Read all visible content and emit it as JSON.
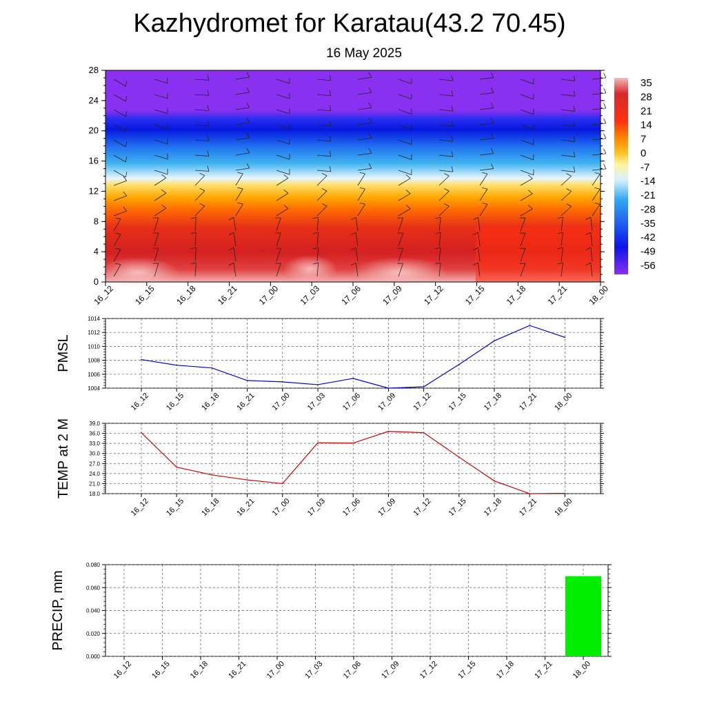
{
  "header": {
    "title": "Kazhydromet for Karatau(43.2 70.45)",
    "subtitle": "16 May 2025"
  },
  "time_labels": [
    "16_12",
    "16_15",
    "16_18",
    "16_21",
    "17_00",
    "17_03",
    "17_06",
    "17_09",
    "17_12",
    "17_15",
    "17_18",
    "17_21",
    "18_00"
  ],
  "chart_data": [
    {
      "type": "heatmap",
      "title": "",
      "ylim": [
        0,
        28
      ],
      "yticks": [
        "0",
        "4",
        "8",
        "12",
        "16",
        "20",
        "24",
        "28"
      ],
      "categories": [
        "16_12",
        "16_15",
        "16_18",
        "16_21",
        "17_00",
        "17_03",
        "17_06",
        "17_09",
        "17_12",
        "17_15",
        "17_18",
        "17_21",
        "18_00"
      ],
      "colorbar": {
        "labels": [
          "35",
          "28",
          "21",
          "14",
          "7",
          "0",
          "-7",
          "-14",
          "-21",
          "-28",
          "-35",
          "-42",
          "-49",
          "-56"
        ],
        "colors": [
          "#f4b9b9",
          "#d62a2a",
          "#e82020",
          "#ff6a00",
          "#ffa000",
          "#ffd54a",
          "#fff8b0",
          "#d8f0ff",
          "#4ab8f0",
          "#2488e8",
          "#2050f0",
          "#0a14e8",
          "#5a10f0",
          "#8a30f0"
        ]
      },
      "bands": [
        {
          "ymin": 0,
          "ymax": 4,
          "label": "35"
        },
        {
          "ymin": 4,
          "ymax": 8,
          "label": "21"
        },
        {
          "ymin": 8,
          "ymax": 12,
          "label": "7"
        },
        {
          "ymin": 12,
          "ymax": 14,
          "label": "-14"
        },
        {
          "ymin": 14,
          "ymax": 18,
          "label": "-28"
        },
        {
          "ymin": 18,
          "ymax": 22,
          "label": "-49"
        },
        {
          "ymin": 22,
          "ymax": 28,
          "label": "-56"
        }
      ],
      "wind_barbs": true
    },
    {
      "type": "line",
      "ylabel": "PMSL",
      "ylim": [
        1004,
        1014
      ],
      "yticks": [
        "1004",
        "1006",
        "1008",
        "1010",
        "1012",
        "1014"
      ],
      "categories": [
        "16_12",
        "16_15",
        "16_18",
        "16_21",
        "17_00",
        "17_03",
        "17_06",
        "17_09",
        "17_12",
        "17_15",
        "17_18",
        "17_21",
        "18_00"
      ],
      "values": [
        1008.1,
        1007.3,
        1006.9,
        1005.1,
        1004.9,
        1004.5,
        1005.4,
        1004.0,
        1004.2,
        1007.4,
        1010.8,
        1013.0,
        1011.3
      ],
      "color": "#0000cc",
      "grid": true
    },
    {
      "type": "line",
      "ylabel": "TEMP at 2 M",
      "ylim": [
        18,
        39
      ],
      "yticks": [
        "18.0",
        "21.0",
        "24.0",
        "27.0",
        "30.0",
        "33.0",
        "36.0",
        "39.0"
      ],
      "categories": [
        "16_12",
        "16_15",
        "16_18",
        "16_21",
        "17_00",
        "17_03",
        "17_06",
        "17_09",
        "17_12",
        "17_15",
        "17_18",
        "17_21",
        "18_00"
      ],
      "values": [
        36.2,
        25.9,
        23.6,
        22.1,
        21.0,
        33.2,
        33.1,
        36.6,
        36.2,
        28.9,
        21.8,
        18.0,
        18.1
      ],
      "color": "#cc0000",
      "grid": true
    },
    {
      "type": "bar",
      "ylabel": "PRECIP, mm",
      "ylim": [
        0,
        0.08
      ],
      "yticks": [
        "0.000",
        "0.020",
        "0.040",
        "0.060",
        "0.080"
      ],
      "categories": [
        "16_12",
        "16_15",
        "16_18",
        "16_21",
        "17_00",
        "17_03",
        "17_06",
        "17_09",
        "17_12",
        "17_15",
        "17_18",
        "17_21",
        "18_00"
      ],
      "values": [
        0,
        0,
        0,
        0,
        0,
        0,
        0,
        0,
        0,
        0,
        0,
        0,
        0.07
      ],
      "color": "#00ee00",
      "grid": true
    }
  ]
}
